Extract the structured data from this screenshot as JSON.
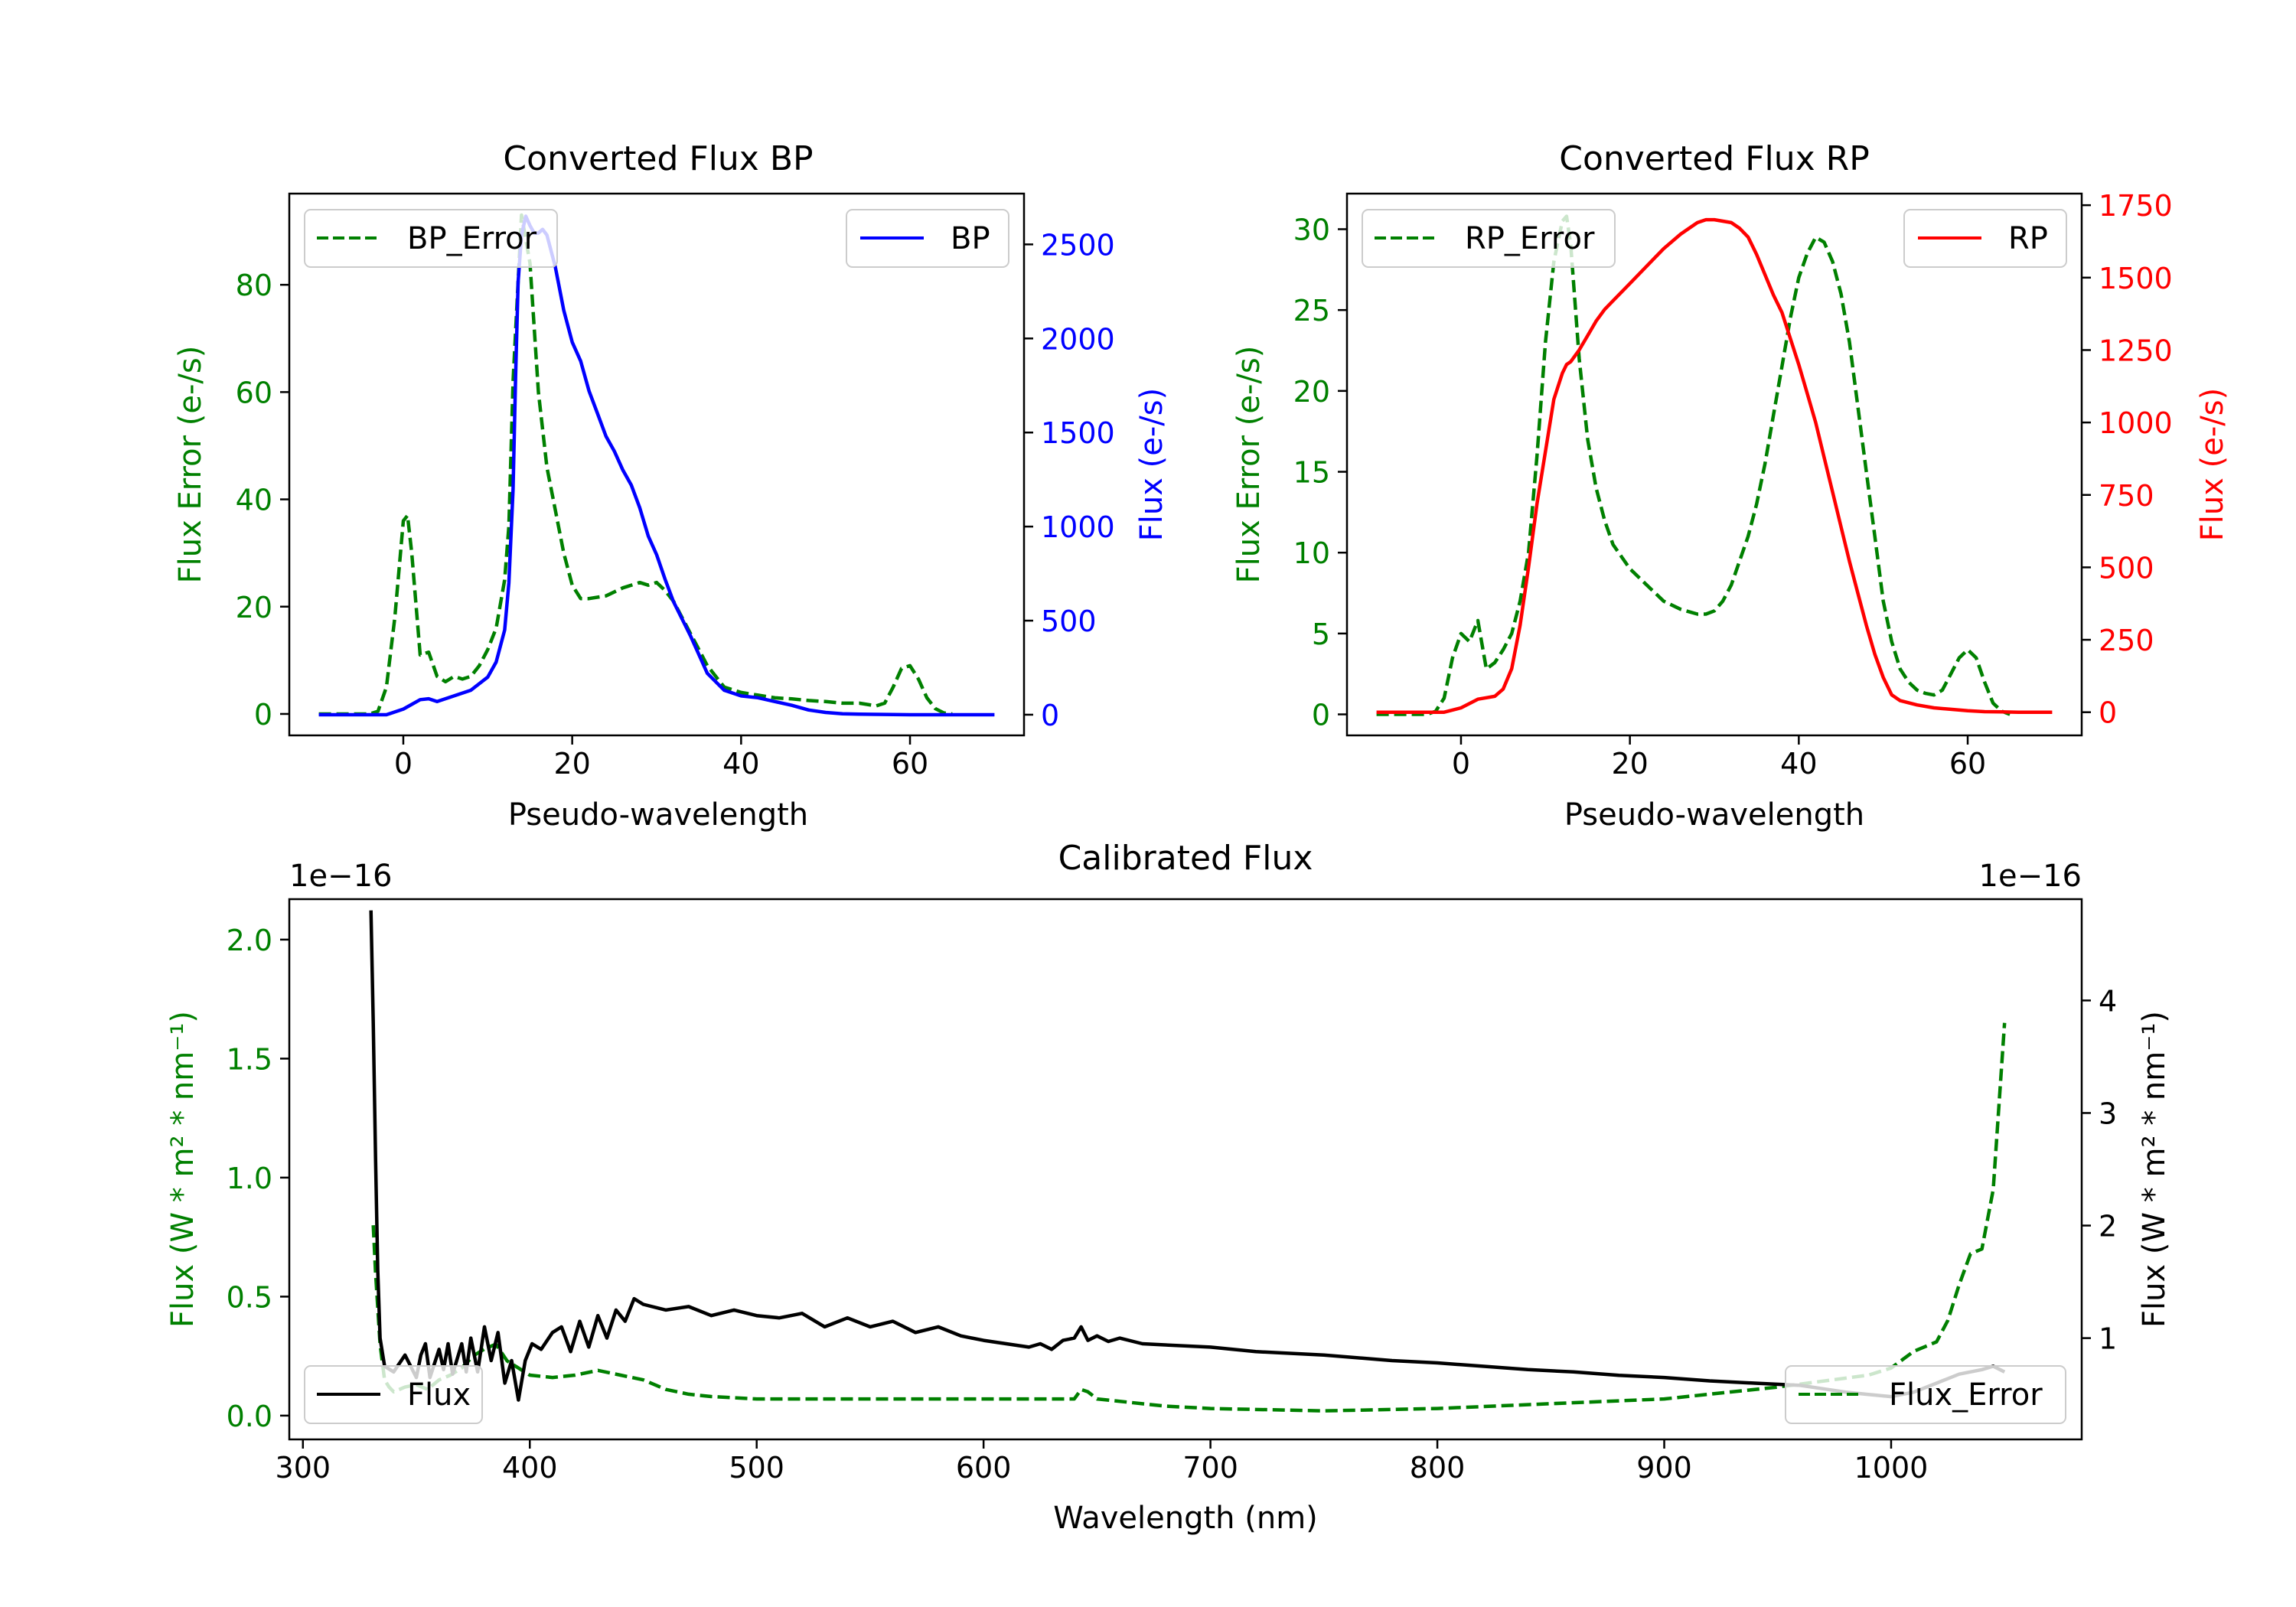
{
  "colors": {
    "error": "#008000",
    "bp": "#0000ff",
    "rp": "#ff0000",
    "flux": "#000000",
    "axis": "#000000"
  },
  "chart_data": [
    {
      "id": "bp",
      "type": "line",
      "title": "Converted Flux BP",
      "xlabel": "Pseudo-wavelength",
      "ylabel_left": "Flux Error (e-/s)",
      "ylabel_right": "Flux (e-/s)",
      "xlim": [
        -13.5,
        73.5
      ],
      "ylim_left": [
        -4,
        97
      ],
      "ylim_right": [
        -110,
        2770
      ],
      "xticks": [
        0,
        20,
        40,
        60
      ],
      "yticks_left": [
        0,
        20,
        40,
        60,
        80
      ],
      "yticks_right": [
        0,
        500,
        1000,
        1500,
        2000,
        2500
      ],
      "legend_left": "BP_Error",
      "legend_right": "BP",
      "series": [
        {
          "name": "BP_Error",
          "axis": "left",
          "style": "dashed",
          "color_key": "error",
          "x": [
            -10,
            -4,
            -3,
            -2,
            -1,
            0,
            0.5,
            1,
            2,
            3,
            4,
            5,
            6,
            7,
            8,
            9,
            10,
            11,
            12,
            12.5,
            13,
            14,
            15,
            16,
            17,
            18,
            19,
            20,
            21,
            22,
            24,
            26,
            28,
            29,
            30,
            31,
            32,
            33,
            34,
            35,
            36,
            38,
            40,
            42,
            44,
            46,
            48,
            50,
            52,
            54,
            56,
            57,
            58,
            59,
            60,
            61,
            62,
            63,
            64,
            65
          ],
          "values": [
            0,
            0,
            0.5,
            5,
            18,
            36,
            37,
            30,
            11,
            11.5,
            7,
            6,
            7,
            6.5,
            7,
            9,
            12,
            16,
            25,
            35,
            62,
            93,
            84,
            60,
            46,
            38,
            30,
            24,
            21.5,
            21.5,
            22,
            23.5,
            24.5,
            24,
            24.5,
            23,
            21,
            18,
            15,
            12,
            9,
            5,
            4,
            3.5,
            3,
            2.8,
            2.5,
            2.3,
            2,
            2,
            1.5,
            2,
            5,
            8.5,
            9,
            6.5,
            3,
            1,
            0.2,
            0
          ]
        },
        {
          "name": "BP",
          "axis": "right",
          "style": "solid",
          "color_key": "bp",
          "x": [
            -10,
            -4,
            -2,
            0,
            2,
            3,
            4,
            6,
            8,
            10,
            11,
            12,
            12.5,
            13,
            13.3,
            13.6,
            14,
            14.5,
            15,
            15.5,
            16,
            16.5,
            17,
            18,
            19,
            20,
            21,
            22,
            23,
            24,
            25,
            26,
            27,
            28,
            29,
            30,
            31,
            32,
            34,
            36,
            38,
            40,
            42,
            44,
            46,
            48,
            50,
            52,
            54,
            56,
            58,
            60,
            62,
            64,
            66,
            68,
            70
          ],
          "values": [
            0,
            0,
            0,
            30,
            80,
            85,
            70,
            100,
            130,
            200,
            280,
            450,
            700,
            1200,
            1800,
            2300,
            2550,
            2650,
            2600,
            2560,
            2560,
            2580,
            2550,
            2380,
            2150,
            1980,
            1880,
            1720,
            1600,
            1480,
            1400,
            1300,
            1220,
            1100,
            950,
            850,
            720,
            600,
            420,
            220,
            130,
            100,
            90,
            70,
            50,
            25,
            12,
            5,
            3,
            2,
            1,
            0,
            0,
            0,
            0,
            0,
            0
          ]
        }
      ]
    },
    {
      "id": "rp",
      "type": "line",
      "title": "Converted Flux RP",
      "xlabel": "Pseudo-wavelength",
      "ylabel_left": "Flux Error (e-/s)",
      "ylabel_right": "Flux (e-/s)",
      "xlim": [
        -13.5,
        73.5
      ],
      "ylim_left": [
        -1.3,
        32.2
      ],
      "ylim_right": [
        -80,
        1790
      ],
      "xticks": [
        0,
        20,
        40,
        60
      ],
      "yticks_left": [
        0,
        5,
        10,
        15,
        20,
        25,
        30
      ],
      "yticks_right": [
        0,
        250,
        500,
        750,
        1000,
        1250,
        1500,
        1750
      ],
      "legend_left": "RP_Error",
      "legend_right": "RP",
      "series": [
        {
          "name": "RP_Error",
          "axis": "left",
          "style": "dashed",
          "color_key": "error",
          "x": [
            -10,
            -4,
            -3,
            -2,
            -1,
            0,
            1,
            2,
            3,
            4,
            5,
            6,
            7,
            8,
            9,
            10,
            11,
            12,
            12.5,
            13,
            14,
            15,
            16,
            17,
            18,
            20,
            22,
            24,
            26,
            28,
            29,
            30,
            31,
            32,
            33,
            34,
            35,
            36,
            37,
            38,
            39,
            40,
            41,
            42,
            43,
            44,
            45,
            46,
            47,
            48,
            49,
            50,
            51,
            52,
            53,
            54,
            55,
            56,
            57,
            58,
            59,
            60,
            61,
            62,
            63,
            64,
            65
          ],
          "values": [
            0,
            0,
            0.2,
            1,
            3.5,
            5,
            4.5,
            5.8,
            2.8,
            3.2,
            4,
            5,
            7,
            10,
            16,
            23,
            28,
            30.5,
            30.8,
            29,
            22,
            17,
            14,
            12,
            10.5,
            9,
            8,
            7,
            6.5,
            6.2,
            6.2,
            6.4,
            7,
            8,
            9.5,
            11,
            13,
            15.5,
            18.5,
            21.5,
            24.5,
            27,
            28.5,
            29.5,
            29.2,
            28,
            26,
            23,
            19,
            15,
            11,
            7,
            4.5,
            2.8,
            2,
            1.5,
            1.3,
            1.2,
            1.5,
            2.5,
            3.5,
            4,
            3.5,
            2,
            0.7,
            0.2,
            0
          ]
        },
        {
          "name": "RP",
          "axis": "right",
          "style": "solid",
          "color_key": "rp",
          "x": [
            -10,
            -4,
            -2,
            0,
            2,
            3,
            4,
            5,
            6,
            7,
            8,
            9,
            10,
            11,
            12,
            12.5,
            13,
            13.5,
            14,
            15,
            16,
            17,
            18,
            20,
            22,
            24,
            26,
            27,
            28,
            29,
            30,
            31,
            32,
            33,
            34,
            35,
            36,
            37,
            38,
            39,
            40,
            41,
            42,
            43,
            44,
            45,
            46,
            47,
            48,
            49,
            50,
            51,
            52,
            54,
            56,
            58,
            60,
            62,
            64,
            66,
            68,
            70
          ],
          "values": [
            0,
            0,
            0,
            15,
            45,
            50,
            55,
            80,
            150,
            300,
            500,
            720,
            900,
            1080,
            1170,
            1200,
            1210,
            1230,
            1250,
            1300,
            1350,
            1390,
            1420,
            1480,
            1540,
            1600,
            1650,
            1670,
            1690,
            1700,
            1700,
            1695,
            1690,
            1670,
            1640,
            1580,
            1510,
            1440,
            1380,
            1290,
            1200,
            1100,
            1000,
            880,
            760,
            640,
            520,
            410,
            300,
            200,
            120,
            60,
            40,
            25,
            15,
            10,
            5,
            2,
            1,
            0,
            0,
            0
          ]
        }
      ]
    },
    {
      "id": "cal",
      "type": "line",
      "title": "Calibrated Flux",
      "xlabel": "Wavelength (nm)",
      "ylabel_left": "Flux (W * m² * nm⁻¹)",
      "ylabel_right": "Flux (W * m² * nm⁻¹)",
      "offset_left": "1e−16",
      "offset_right": "1e−16",
      "xlim": [
        294,
        1084
      ],
      "ylim_left": [
        -0.1,
        2.17
      ],
      "ylim_right": [
        0.1,
        4.9
      ],
      "xticks": [
        300,
        400,
        500,
        600,
        700,
        800,
        900,
        1000
      ],
      "yticks_left": [
        0.0,
        0.5,
        1.0,
        1.5,
        2.0
      ],
      "ytick_labels_left": [
        "0.0",
        "0.5",
        "1.0",
        "1.5",
        "2.0"
      ],
      "yticks_right": [
        1,
        2,
        3,
        4
      ],
      "legend_left": "Flux",
      "legend_right": "Flux_Error",
      "series": [
        {
          "name": "Flux_Error",
          "axis": "left",
          "style": "dashed",
          "color_key": "error",
          "x": [
            331,
            332,
            334,
            336,
            338,
            340,
            345,
            350,
            355,
            360,
            365,
            370,
            375,
            380,
            385,
            390,
            395,
            400,
            410,
            420,
            430,
            440,
            450,
            460,
            470,
            480,
            500,
            550,
            600,
            620,
            640,
            643,
            646,
            650,
            680,
            700,
            750,
            800,
            850,
            900,
            950,
            990,
            1000,
            1010,
            1020,
            1025,
            1030,
            1035,
            1040,
            1045,
            1050
          ],
          "values": [
            0.8,
            0.6,
            0.3,
            0.15,
            0.12,
            0.1,
            0.12,
            0.13,
            0.11,
            0.15,
            0.17,
            0.2,
            0.25,
            0.28,
            0.3,
            0.23,
            0.2,
            0.17,
            0.16,
            0.17,
            0.19,
            0.17,
            0.15,
            0.11,
            0.09,
            0.08,
            0.07,
            0.07,
            0.07,
            0.07,
            0.07,
            0.11,
            0.1,
            0.07,
            0.04,
            0.03,
            0.02,
            0.03,
            0.05,
            0.07,
            0.12,
            0.17,
            0.2,
            0.27,
            0.31,
            0.4,
            0.55,
            0.68,
            0.7,
            0.95,
            1.65
          ]
        },
        {
          "name": "Flux",
          "axis": "right",
          "style": "solid",
          "color_key": "flux",
          "x": [
            330,
            331,
            332,
            333,
            334,
            336,
            340,
            345,
            350,
            352,
            354,
            356,
            360,
            362,
            364,
            366,
            370,
            372,
            374,
            377,
            380,
            383,
            386,
            389,
            392,
            395,
            398,
            401,
            405,
            410,
            414,
            418,
            422,
            426,
            430,
            434,
            438,
            442,
            446,
            450,
            460,
            470,
            480,
            490,
            500,
            510,
            520,
            530,
            540,
            550,
            560,
            570,
            580,
            590,
            600,
            610,
            620,
            625,
            630,
            635,
            640,
            643,
            646,
            650,
            655,
            660,
            670,
            680,
            700,
            720,
            750,
            780,
            800,
            820,
            840,
            860,
            880,
            900,
            920,
            940,
            960,
            970,
            980,
            990,
            1000,
            1010,
            1020,
            1030,
            1040,
            1045,
            1050
          ],
          "values": [
            4.8,
            3.8,
            2.6,
            1.6,
            1.0,
            0.75,
            0.7,
            0.85,
            0.65,
            0.85,
            0.95,
            0.65,
            0.9,
            0.72,
            0.95,
            0.68,
            0.95,
            0.7,
            1.0,
            0.7,
            1.1,
            0.8,
            1.05,
            0.6,
            0.8,
            0.45,
            0.8,
            0.95,
            0.9,
            1.05,
            1.1,
            0.88,
            1.15,
            0.92,
            1.2,
            1.0,
            1.25,
            1.15,
            1.35,
            1.3,
            1.25,
            1.28,
            1.2,
            1.25,
            1.2,
            1.18,
            1.22,
            1.1,
            1.18,
            1.1,
            1.15,
            1.05,
            1.1,
            1.02,
            0.98,
            0.95,
            0.92,
            0.95,
            0.9,
            0.98,
            1.0,
            1.1,
            0.98,
            1.02,
            0.97,
            1.0,
            0.95,
            0.94,
            0.92,
            0.88,
            0.85,
            0.8,
            0.78,
            0.75,
            0.72,
            0.7,
            0.67,
            0.65,
            0.62,
            0.6,
            0.58,
            0.55,
            0.52,
            0.5,
            0.48,
            0.52,
            0.6,
            0.68,
            0.72,
            0.75,
            0.7
          ]
        }
      ]
    }
  ]
}
